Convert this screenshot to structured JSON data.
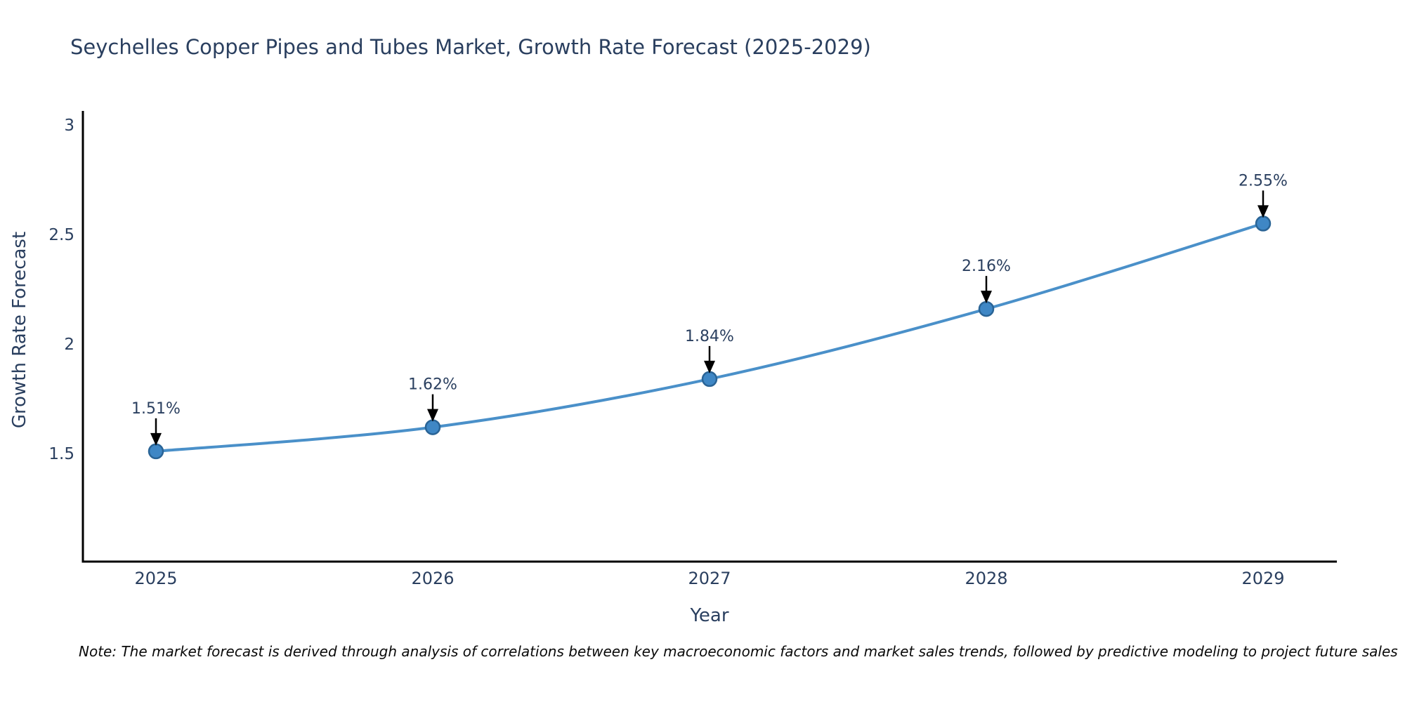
{
  "note": "Note: The market forecast is derived through analysis of correlations between key macroeconomic factors and market sales trends, followed by predictive modeling to project future sales",
  "chart_data": {
    "type": "line",
    "title": "Seychelles Copper Pipes and Tubes Market, Growth Rate Forecast (2025-2029)",
    "xlabel": "Year",
    "ylabel": "Growth Rate Forecast",
    "x": [
      2025,
      2026,
      2027,
      2028,
      2029
    ],
    "values": [
      1.51,
      1.62,
      1.84,
      2.16,
      2.55
    ],
    "annotations": [
      "1.51%",
      "1.62%",
      "1.84%",
      "2.16%",
      "2.55%"
    ],
    "xtick_labels": [
      "2025",
      "2026",
      "2027",
      "2028",
      "2029"
    ],
    "yticks": [
      1.5,
      2,
      2.5,
      3
    ],
    "ytick_labels": [
      "1.5",
      "2",
      "2.5",
      "3"
    ],
    "ylim": [
      1.0,
      3.16
    ],
    "grid": false,
    "legend": "none",
    "line_shape": "spline",
    "line_color": "#4a90c9",
    "marker_fill": "#3f87c5",
    "marker_stroke": "#2a6496",
    "arrow_color": "#000000",
    "axis_color": "#000000",
    "text_color": "#2a3f5f"
  }
}
